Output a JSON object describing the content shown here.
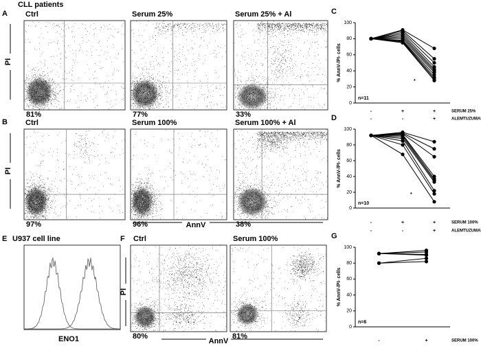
{
  "header": {
    "title": "CLL patients"
  },
  "flow_rows": [
    {
      "letter": "A",
      "y_label": "PI",
      "plots": [
        {
          "title": "Ctrl",
          "percent": "81%"
        },
        {
          "title": "Serum 25%",
          "percent": "77%"
        },
        {
          "title": "Serum 25% + Al",
          "percent": "33%"
        }
      ]
    },
    {
      "letter": "B",
      "y_label": "PI",
      "x_label": "AnnV",
      "plots": [
        {
          "title": "Ctrl",
          "percent": "97%"
        },
        {
          "title": "Serum 100%",
          "percent": "96%"
        },
        {
          "title": "Serum 100% + Al",
          "percent": "38%"
        }
      ]
    }
  ],
  "histogram": {
    "letter": "E",
    "title": "U937 cell line",
    "x_label": "ENO1"
  },
  "flow_f": {
    "letter": "F",
    "y_label": "PI",
    "x_label": "AnnV",
    "plots": [
      {
        "title": "Ctrl",
        "percent": "80%"
      },
      {
        "title": "Serum 100%",
        "percent": "81%"
      }
    ]
  },
  "chart_data": [
    {
      "letter": "C",
      "type": "line",
      "y_label": "% AnnV-/PI- cells",
      "color": "#000000",
      "ylim": [
        0,
        100
      ],
      "yticks": [
        0,
        20,
        40,
        60,
        80,
        100
      ],
      "condition_rows": [
        {
          "name": "SERUM 25%",
          "labels": [
            "-",
            "+",
            "+"
          ]
        },
        {
          "name": "ALEMTUZUMAB",
          "labels": [
            "-",
            "-",
            "+"
          ]
        }
      ],
      "annotations": [
        "n=11",
        "*"
      ],
      "series": [
        {
          "values": [
            80,
            91,
            68
          ]
        },
        {
          "values": [
            80,
            90,
            55
          ]
        },
        {
          "values": [
            80,
            88,
            50
          ]
        },
        {
          "values": [
            80,
            86,
            45
          ]
        },
        {
          "values": [
            80,
            84,
            42
          ]
        },
        {
          "values": [
            80,
            82,
            40
          ]
        },
        {
          "values": [
            80,
            80,
            38
          ]
        },
        {
          "values": [
            80,
            78,
            35
          ]
        },
        {
          "values": [
            80,
            77,
            32
          ]
        },
        {
          "values": [
            80,
            76,
            30
          ]
        },
        {
          "values": [
            80,
            75,
            28
          ]
        }
      ]
    },
    {
      "letter": "D",
      "type": "line",
      "y_label": "% AnnV-/PI- cells",
      "color": "#000000",
      "ylim": [
        0,
        100
      ],
      "yticks": [
        0,
        20,
        40,
        60,
        80,
        100
      ],
      "condition_rows": [
        {
          "name": "SERUM 100%",
          "labels": [
            "-",
            "+",
            "+"
          ]
        },
        {
          "name": "ALEMTUZUMAB",
          "labels": [
            "-",
            "-",
            "+"
          ]
        }
      ],
      "annotations": [
        "n=10",
        "*"
      ],
      "series": [
        {
          "values": [
            92,
            96,
            84
          ]
        },
        {
          "values": [
            92,
            95,
            75
          ]
        },
        {
          "values": [
            92,
            94,
            65
          ]
        },
        {
          "values": [
            92,
            93,
            40
          ]
        },
        {
          "values": [
            92,
            92,
            37
          ]
        },
        {
          "values": [
            92,
            90,
            35
          ]
        },
        {
          "values": [
            92,
            88,
            33
          ]
        },
        {
          "values": [
            92,
            85,
            22
          ]
        },
        {
          "values": [
            92,
            80,
            18
          ]
        },
        {
          "values": [
            92,
            68,
            8
          ]
        }
      ]
    },
    {
      "letter": "G",
      "type": "line",
      "y_label": "% AnnV-/PI- cells",
      "color": "#000000",
      "ylim": [
        0,
        100
      ],
      "yticks": [
        0,
        20,
        40,
        60,
        80,
        100
      ],
      "condition_rows": [
        {
          "name": "SERUM 100%",
          "labels": [
            "-",
            "+"
          ]
        }
      ],
      "annotations": [
        "n=6"
      ],
      "series": [
        {
          "values": [
            92,
            96
          ]
        },
        {
          "values": [
            92,
            94
          ]
        },
        {
          "values": [
            92,
            91
          ]
        },
        {
          "values": [
            92,
            90
          ]
        },
        {
          "values": [
            80,
            86
          ]
        },
        {
          "values": [
            80,
            82
          ]
        }
      ]
    }
  ]
}
